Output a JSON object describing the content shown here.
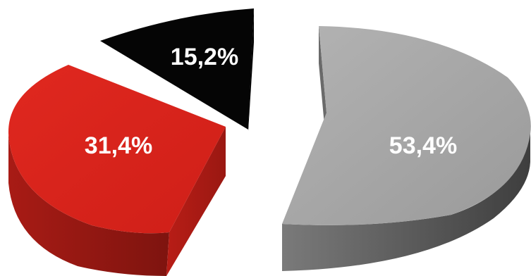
{
  "chart_data": {
    "type": "pie",
    "style": "3d-exploded",
    "slices": [
      {
        "label": "53,4%",
        "value": 53.4,
        "color": "#a0a0a0",
        "side_color": "#4f4f4f"
      },
      {
        "label": "31,4%",
        "value": 31.4,
        "color": "#d9221b",
        "side_color": "#8d1712"
      },
      {
        "label": "15,2%",
        "value": 15.2,
        "color": "#050505",
        "side_color": "#000000"
      }
    ]
  }
}
